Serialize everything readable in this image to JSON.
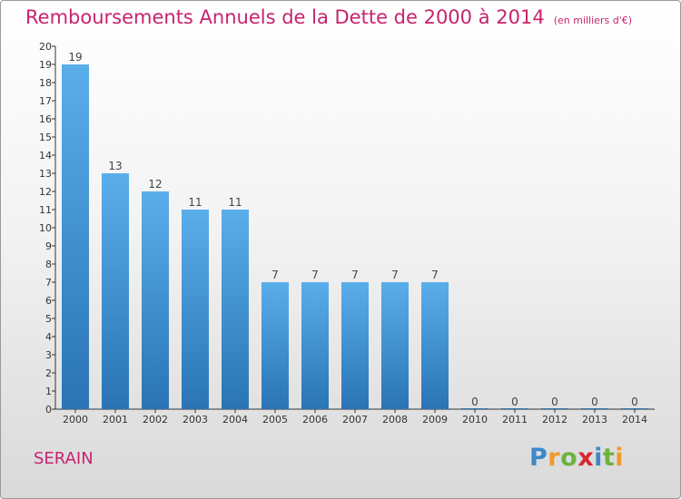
{
  "title": "Remboursements Annuels de la Dette de 2000 à 2014",
  "unit_note": "(en milliers d'€)",
  "commune": "SERAIN",
  "logo": {
    "letters": [
      "P",
      "r",
      "o",
      "x",
      "i",
      "t",
      "i"
    ],
    "colors": [
      "#3d88c9",
      "#f09a2a",
      "#6cb33f",
      "#d8282f",
      "#3d88c9",
      "#6cb33f",
      "#f09a2a"
    ]
  },
  "colors": {
    "title": "#c8236e",
    "bar_top": "#5aaeea",
    "bar_bottom": "#2a74b4",
    "axis": "#333333"
  },
  "chart_data": {
    "type": "bar",
    "categories": [
      "2000",
      "2001",
      "2002",
      "2003",
      "2004",
      "2005",
      "2006",
      "2007",
      "2008",
      "2009",
      "2010",
      "2011",
      "2012",
      "2013",
      "2014"
    ],
    "values": [
      19,
      13,
      12,
      11,
      11,
      7,
      7,
      7,
      7,
      7,
      0,
      0,
      0,
      0,
      0
    ],
    "ylim": [
      0,
      20
    ],
    "yticks": [
      0,
      1,
      2,
      3,
      4,
      5,
      6,
      7,
      8,
      9,
      10,
      11,
      12,
      13,
      14,
      15,
      16,
      17,
      18,
      19,
      20
    ],
    "grid": false,
    "data_labels": true
  }
}
